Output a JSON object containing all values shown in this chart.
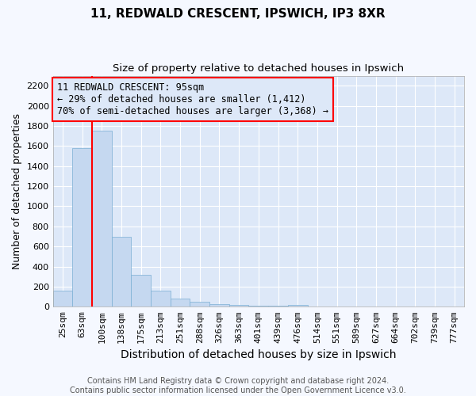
{
  "title": "11, REDWALD CRESCENT, IPSWICH, IP3 8XR",
  "subtitle": "Size of property relative to detached houses in Ipswich",
  "xlabel": "Distribution of detached houses by size in Ipswich",
  "ylabel": "Number of detached properties",
  "categories": [
    "25sqm",
    "63sqm",
    "100sqm",
    "138sqm",
    "175sqm",
    "213sqm",
    "251sqm",
    "288sqm",
    "326sqm",
    "363sqm",
    "401sqm",
    "439sqm",
    "476sqm",
    "514sqm",
    "551sqm",
    "589sqm",
    "627sqm",
    "664sqm",
    "702sqm",
    "739sqm",
    "777sqm"
  ],
  "values": [
    160,
    1580,
    1750,
    700,
    320,
    160,
    85,
    50,
    30,
    18,
    10,
    8,
    20,
    0,
    0,
    0,
    0,
    0,
    0,
    0,
    0
  ],
  "bar_color": "#c5d8f0",
  "bar_edge_color": "#7bafd4",
  "property_line_index": 2,
  "property_line_color": "red",
  "annotation_line1": "11 REDWALD CRESCENT: 95sqm",
  "annotation_line2": "← 29% of detached houses are smaller (1,412)",
  "annotation_line3": "70% of semi-detached houses are larger (3,368) →",
  "annotation_box_color": "red",
  "ylim": [
    0,
    2300
  ],
  "yticks": [
    0,
    200,
    400,
    600,
    800,
    1000,
    1200,
    1400,
    1600,
    1800,
    2000,
    2200
  ],
  "plot_bg_color": "#dde8f8",
  "figure_bg_color": "#f5f8ff",
  "grid_color": "white",
  "footer_text": "Contains HM Land Registry data © Crown copyright and database right 2024.\nContains public sector information licensed under the Open Government Licence v3.0.",
  "title_fontsize": 11,
  "subtitle_fontsize": 9.5,
  "xlabel_fontsize": 10,
  "ylabel_fontsize": 9,
  "tick_fontsize": 8,
  "annotation_fontsize": 8.5,
  "footer_fontsize": 7
}
